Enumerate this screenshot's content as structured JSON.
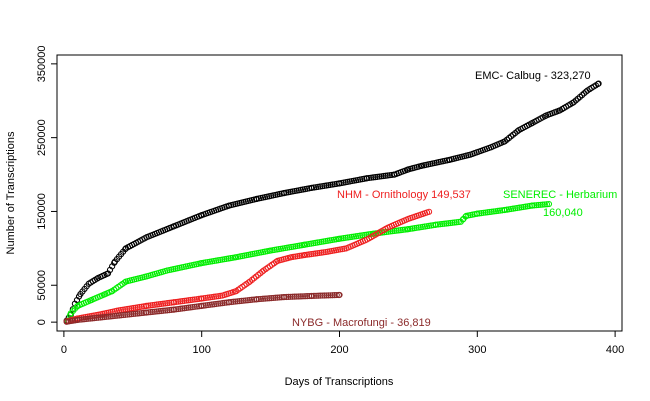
{
  "chart_data": {
    "type": "scatter",
    "title": "",
    "xlabel": "Days of Transcriptions",
    "ylabel": "Number of Transcriptions",
    "xlim": [
      -5,
      405
    ],
    "ylim": [
      -12000,
      362000
    ],
    "xticks": [
      0,
      100,
      200,
      300,
      400
    ],
    "yticks": [
      0,
      50000,
      150000,
      250000,
      350000
    ],
    "xtick_labels": [
      "0",
      "100",
      "200",
      "300",
      "400"
    ],
    "ytick_labels": [
      "0",
      "50000",
      "150000",
      "250000",
      "350000"
    ],
    "grid": false,
    "series": [
      {
        "name": "EMC- Calbug",
        "label_value": "323,270",
        "annotation": "EMC- Calbug - 323,270",
        "color": "#000000",
        "x": [
          2,
          5,
          8,
          12,
          18,
          25,
          32,
          37,
          45,
          60,
          80,
          100,
          120,
          140,
          160,
          180,
          200,
          220,
          240,
          250,
          260,
          280,
          295,
          310,
          320,
          330,
          340,
          350,
          360,
          370,
          380,
          388
        ],
        "y": [
          2000,
          10000,
          25000,
          38000,
          52000,
          60000,
          66000,
          82000,
          100000,
          115000,
          130000,
          145000,
          158000,
          167000,
          175000,
          182000,
          188000,
          195000,
          200000,
          207000,
          212000,
          220000,
          227000,
          237000,
          245000,
          260000,
          270000,
          280000,
          287000,
          298000,
          314000,
          323270
        ]
      },
      {
        "name": "SENEREC - Herbarium",
        "label_value": "160,040",
        "annotation_line1": "SENEREC - Herbarium",
        "annotation_line2": "160,040",
        "color": "#00ee00",
        "x": [
          3,
          5,
          10,
          20,
          30,
          35,
          45,
          60,
          75,
          100,
          125,
          150,
          175,
          200,
          225,
          250,
          270,
          288,
          290,
          292,
          300,
          320,
          340,
          352
        ],
        "y": [
          2000,
          12000,
          22000,
          30000,
          38000,
          42000,
          55000,
          62000,
          70000,
          80000,
          88000,
          97000,
          105000,
          113000,
          120000,
          126000,
          132000,
          136000,
          140000,
          144000,
          147000,
          152000,
          158000,
          160040
        ]
      },
      {
        "name": "NHM - Ornithology",
        "label_value": "149,537",
        "annotation": "NHM - Ornithology 149,537",
        "color": "#ee2020",
        "x": [
          2,
          10,
          25,
          40,
          60,
          80,
          100,
          115,
          125,
          135,
          145,
          155,
          165,
          175,
          190,
          205,
          220,
          235,
          250,
          265
        ],
        "y": [
          1000,
          5000,
          10000,
          16000,
          22000,
          27000,
          32000,
          36000,
          42000,
          55000,
          70000,
          83000,
          88000,
          91000,
          95000,
          100000,
          112000,
          128000,
          140000,
          149537
        ]
      },
      {
        "name": "NYBG - Macrofungi",
        "label_value": "36,819",
        "annotation": "NYBG - Macrofungi - 36,819",
        "color": "#8b2a2a",
        "x": [
          2,
          10,
          25,
          40,
          60,
          80,
          100,
          120,
          140,
          160,
          180,
          200
        ],
        "y": [
          500,
          3000,
          6000,
          9000,
          13000,
          17000,
          22000,
          27000,
          31000,
          34000,
          35500,
          36819
        ]
      }
    ]
  }
}
